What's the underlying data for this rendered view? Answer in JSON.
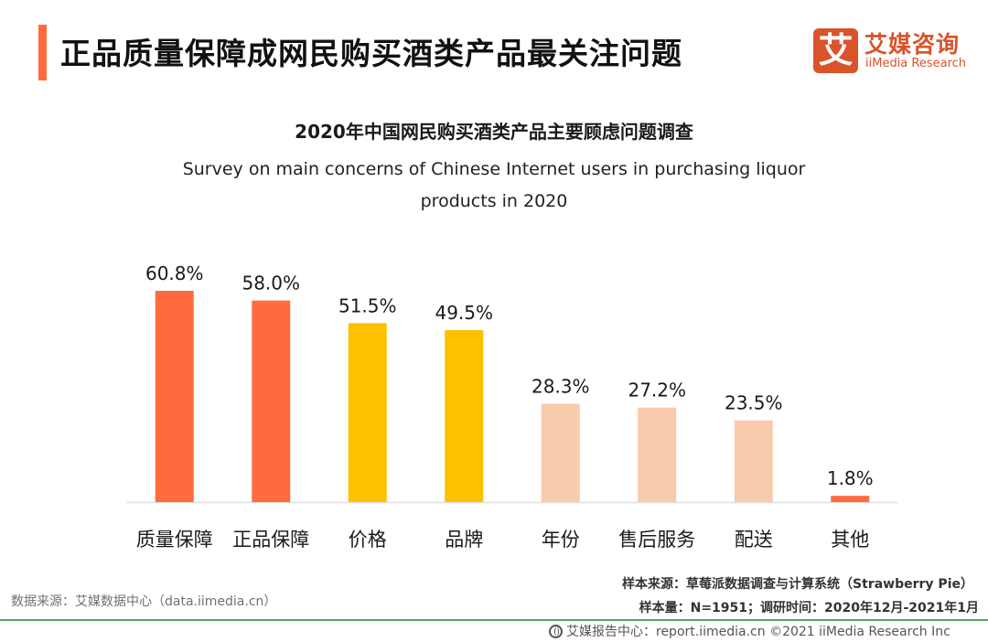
{
  "header": {
    "title": "正品质量保障成网民购买酒类产品最关注问题",
    "accent_color": "#ff6b3d"
  },
  "logo": {
    "mark": "艾",
    "name_cn": "艾媒咨询",
    "name_en": "iiMedia Research",
    "brand_color": "#d9532b"
  },
  "chart_data": {
    "type": "bar",
    "title": "2020年中国网民购买酒类产品主要顾虑问题调查",
    "subtitle_lines": [
      "Survey on main concerns of Chinese Internet users in purchasing liquor",
      "products in 2020"
    ],
    "xlabel": "",
    "ylabel": "",
    "ylim": [
      0,
      65
    ],
    "grid": false,
    "unit": "%",
    "categories": [
      "质量保障",
      "正品保障",
      "价格",
      "品牌",
      "年份",
      "售后服务",
      "配送",
      "其他"
    ],
    "values": [
      60.8,
      58.0,
      51.5,
      49.5,
      28.3,
      27.2,
      23.5,
      1.8
    ],
    "labels": [
      "60.8%",
      "58.0%",
      "51.5%",
      "49.5%",
      "28.3%",
      "27.2%",
      "23.5%",
      "1.8%"
    ],
    "colors": [
      "#ff6b3d",
      "#ff6b3d",
      "#ffc000",
      "#ffc000",
      "#f8cbad",
      "#f8cbad",
      "#f8cbad",
      "#ff6b3d"
    ],
    "axis_color": "#e0e0e0"
  },
  "footer": {
    "data_source": "数据来源：艾媒数据中心（data.iimedia.cn）",
    "sample_source": "样本来源：草莓派数据调查与计算系统（Strawberry Pie）",
    "sample_info": "样本量：N=1951；调研时间：2020年12月-2021年1月",
    "report_center": "艾媒报告中心：report.iimedia.cn   ©2021  iiMedia Research  Inc"
  }
}
